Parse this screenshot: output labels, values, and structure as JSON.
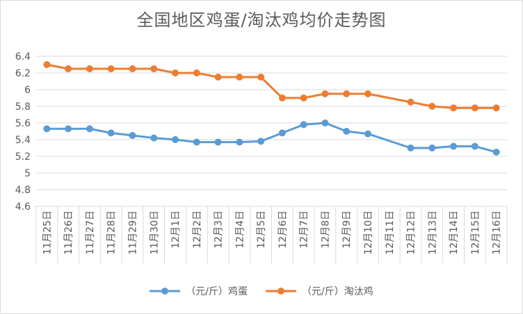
{
  "chart_data": {
    "type": "line",
    "title": "全国地区鸡蛋/淘汰鸡均价走势图",
    "categories": [
      "11月25日",
      "11月26日",
      "11月27日",
      "11月28日",
      "11月29日",
      "11月30日",
      "12月1日",
      "12月2日",
      "12月3日",
      "12月4日",
      "12月5日",
      "12月6日",
      "12月7日",
      "12月8日",
      "12月9日",
      "12月10日",
      "12月11日",
      "12月12日",
      "12月13日",
      "12月14日",
      "12月15日",
      "12月16日"
    ],
    "series": [
      {
        "name": "（元/斤）鸡蛋",
        "color": "#5b9bd5",
        "values": [
          5.53,
          5.53,
          5.53,
          5.48,
          5.45,
          5.42,
          5.4,
          5.37,
          5.37,
          5.37,
          5.38,
          5.48,
          5.58,
          5.6,
          5.5,
          5.47,
          null,
          5.3,
          5.3,
          5.32,
          5.32,
          5.25
        ]
      },
      {
        "name": "（元/斤）淘汰鸡",
        "color": "#ed7d31",
        "values": [
          6.3,
          6.25,
          6.25,
          6.25,
          6.25,
          6.25,
          6.2,
          6.2,
          6.15,
          6.15,
          6.15,
          5.9,
          5.9,
          5.95,
          5.95,
          5.95,
          null,
          5.85,
          5.8,
          5.78,
          5.78,
          5.78
        ]
      }
    ],
    "ylim": [
      4.6,
      6.4
    ],
    "yticks": [
      "4.6",
      "4.8",
      "5",
      "5.2",
      "5.4",
      "5.6",
      "5.8",
      "6",
      "6.2",
      "6.4"
    ],
    "grid": true,
    "legend": "bottom"
  }
}
